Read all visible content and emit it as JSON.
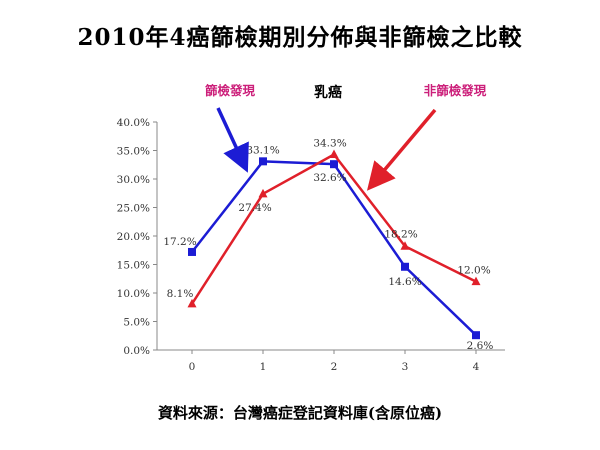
{
  "header": {
    "title": "2010年4癌篩檢期別分佈與非篩檢之比較"
  },
  "footer": {
    "source": "資料來源：台灣癌症登記資料庫(含原位癌)"
  },
  "colors": {
    "screened": "#1c1cd4",
    "non_screened": "#e0202a",
    "annot_left": "#cc1f7a",
    "annot_right": "#cc1f7a"
  },
  "annotations": {
    "left": "篩檢發現",
    "right": "非篩檢發現"
  },
  "chart_data": {
    "type": "line",
    "title": "乳癌",
    "xlabel": "",
    "ylabel": "",
    "categories": [
      "0",
      "1",
      "2",
      "3",
      "4"
    ],
    "ylim": [
      0,
      40
    ],
    "yticks": [
      "0.0%",
      "5.0%",
      "10.0%",
      "15.0%",
      "20.0%",
      "25.0%",
      "30.0%",
      "35.0%",
      "40.0%"
    ],
    "grid": false,
    "legend": "none",
    "series": [
      {
        "name": "篩檢發現",
        "color": "#1c1cd4",
        "marker": "square",
        "values": [
          17.2,
          33.1,
          32.6,
          14.6,
          2.6
        ],
        "labels": [
          "17.2%",
          "33.1%",
          "32.6%",
          "14.6%",
          "2.6%"
        ]
      },
      {
        "name": "非篩檢發現",
        "color": "#e0202a",
        "marker": "triangle",
        "values": [
          8.1,
          27.4,
          34.3,
          18.2,
          12.0
        ],
        "labels": [
          "8.1%",
          "27.4%",
          "34.3%",
          "18.2%",
          "12.0%"
        ]
      }
    ]
  }
}
